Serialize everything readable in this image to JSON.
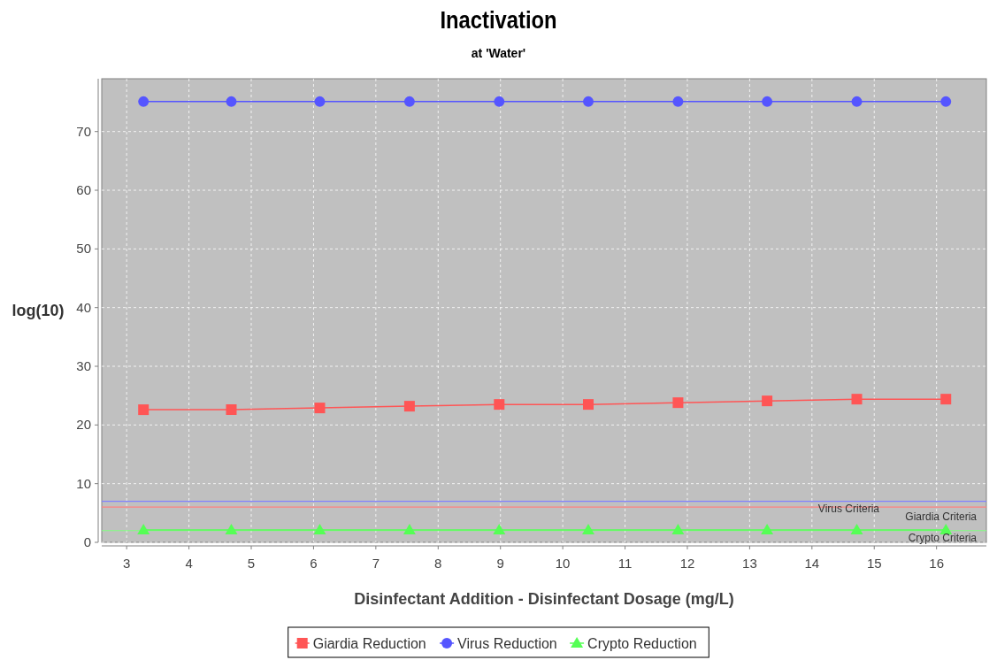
{
  "chart_data": {
    "type": "line",
    "title": "Inactivation",
    "subtitle": "at 'Water'",
    "xlabel": "Disinfectant Addition - Disinfectant Dosage (mg/L)",
    "ylabel": "log(10)",
    "xlim": [
      2.6,
      16.8
    ],
    "xticks": [
      3,
      4,
      5,
      6,
      7,
      8,
      9,
      10,
      11,
      12,
      13,
      14,
      15,
      16
    ],
    "ylim": [
      0,
      79
    ],
    "yticks": [
      0,
      10,
      20,
      30,
      40,
      50,
      60,
      70
    ],
    "grid": true,
    "legend": "bottom",
    "series": [
      {
        "name": "Giardia Reduction",
        "color": "#ff5555",
        "marker": "square",
        "x": [
          3.27,
          4.68,
          6.1,
          7.54,
          8.98,
          10.41,
          11.85,
          13.28,
          14.72,
          16.15
        ],
        "values": [
          22.6,
          22.6,
          22.9,
          23.2,
          23.5,
          23.5,
          23.8,
          24.1,
          24.4,
          24.4
        ]
      },
      {
        "name": "Virus Reduction",
        "color": "#5555ff",
        "marker": "circle",
        "x": [
          3.27,
          4.68,
          6.1,
          7.54,
          8.98,
          10.41,
          11.85,
          13.28,
          14.72,
          16.15
        ],
        "values": [
          75.1,
          75.1,
          75.1,
          75.1,
          75.1,
          75.1,
          75.1,
          75.1,
          75.1,
          75.1
        ]
      },
      {
        "name": "Crypto Reduction",
        "color": "#55ff55",
        "marker": "triangle",
        "x": [
          3.27,
          4.68,
          6.1,
          7.54,
          8.98,
          10.41,
          11.85,
          13.28,
          14.72,
          16.15
        ],
        "values": [
          2.1,
          2.1,
          2.1,
          2.1,
          2.1,
          2.1,
          2.1,
          2.1,
          2.1,
          2.1
        ]
      }
    ],
    "ref_lines": [
      {
        "axis": "y",
        "value": 7,
        "label": "Virus Criteria",
        "color": "#8080ff"
      },
      {
        "axis": "y",
        "value": 6,
        "label": "Giardia Criteria",
        "color": "#ff8080"
      },
      {
        "axis": "y",
        "value": 2,
        "label": "Crypto Criteria",
        "color": "#80ff80"
      }
    ]
  }
}
